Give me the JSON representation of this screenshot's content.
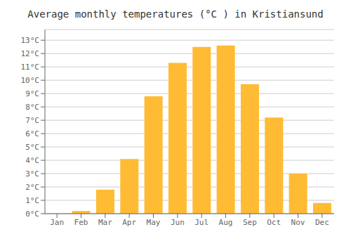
{
  "chart_data": {
    "type": "bar",
    "title": "Average monthly temperatures (°C ) in Kristiansund",
    "categories": [
      "Jan",
      "Feb",
      "Mar",
      "Apr",
      "May",
      "Jun",
      "Jul",
      "Aug",
      "Sep",
      "Oct",
      "Nov",
      "Dec"
    ],
    "values": [
      0.0,
      0.2,
      1.8,
      4.1,
      8.8,
      11.3,
      12.5,
      12.6,
      9.7,
      7.2,
      3.0,
      0.8
    ],
    "color": "#FFBB33",
    "ylim": [
      0,
      13.8
    ],
    "yticks": [
      {
        "value": 0,
        "label": "0°C"
      },
      {
        "value": 1,
        "label": "1°C"
      },
      {
        "value": 2,
        "label": "2°C"
      },
      {
        "value": 3,
        "label": "3°C"
      },
      {
        "value": 4,
        "label": "4°C"
      },
      {
        "value": 5,
        "label": "5°C"
      },
      {
        "value": 6,
        "label": "6°C"
      },
      {
        "value": 7,
        "label": "7°C"
      },
      {
        "value": 8,
        "label": "8°C"
      },
      {
        "value": 9,
        "label": "9°C"
      },
      {
        "value": 10,
        "label": "10°C"
      },
      {
        "value": 11,
        "label": "11°C"
      },
      {
        "value": 12,
        "label": "12°C"
      },
      {
        "value": 13,
        "label": "13°C"
      }
    ],
    "grid": true
  }
}
